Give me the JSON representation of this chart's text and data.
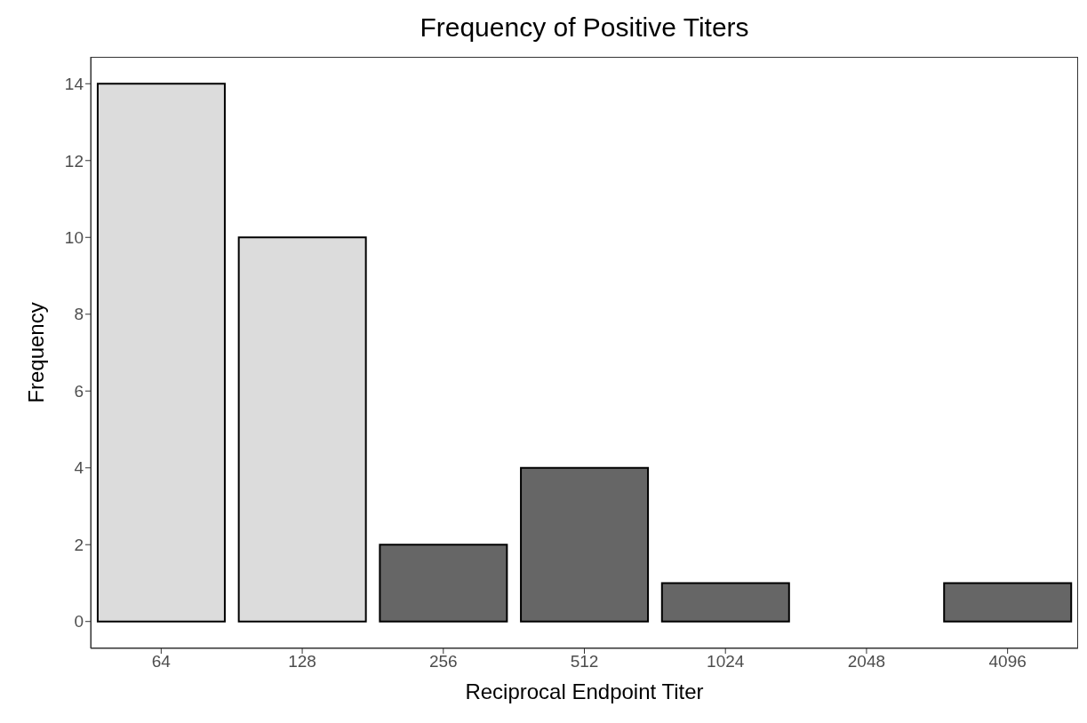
{
  "chart_data": {
    "type": "bar",
    "title": "Frequency of Positive Titers",
    "xlabel": "Reciprocal Endpoint Titer",
    "ylabel": "Frequency",
    "categories": [
      "64",
      "128",
      "256",
      "512",
      "1024",
      "2048",
      "4096"
    ],
    "values": [
      14,
      10,
      2,
      4,
      1,
      null,
      1
    ],
    "colors": [
      "#dcdcdc",
      "#dcdcdc",
      "#666666",
      "#666666",
      "#666666",
      "#666666",
      "#666666"
    ],
    "ylim": [
      -0.7,
      14.7
    ],
    "yticks": [
      0,
      2,
      4,
      6,
      8,
      10,
      12,
      14
    ],
    "grid": false,
    "legend": false
  }
}
